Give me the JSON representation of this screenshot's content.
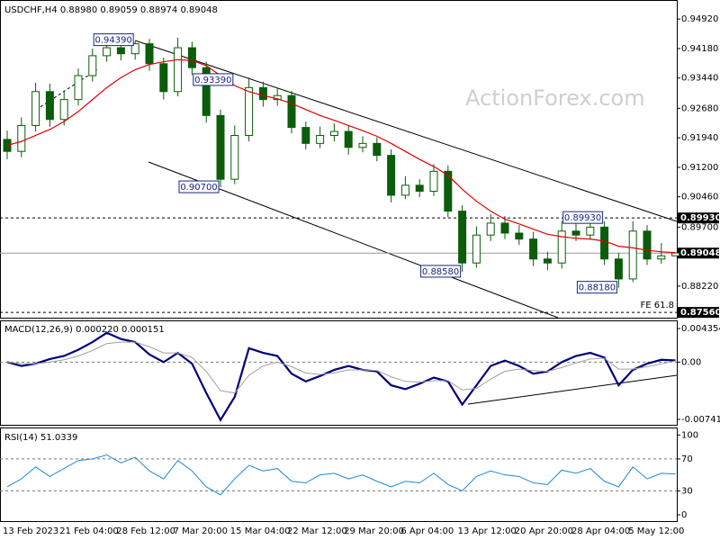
{
  "chart_data": [
    {
      "type": "candlestick",
      "title": "USDCHF,H4 0.88980 0.89059 0.88974 0.89048",
      "watermark": "ActionForex.com",
      "categories": [
        "13 Feb 2023",
        null,
        null,
        null,
        "21 Feb 04:00",
        null,
        null,
        null,
        "28 Feb 12:00",
        null,
        null,
        null,
        "7 Mar 20:00",
        null,
        null,
        null,
        "15 Mar 04:00",
        null,
        null,
        null,
        "22 Mar 12:00",
        null,
        null,
        null,
        "29 Mar 20:00",
        null,
        null,
        null,
        "6 Apr 04:00",
        null,
        null,
        null,
        "13 Apr 12:00",
        null,
        null,
        null,
        "20 Apr 20:00",
        null,
        null,
        null,
        "28 Apr 04:00",
        null,
        null,
        null,
        "5 May 12:00",
        null,
        null,
        null
      ],
      "open": [
        0.919,
        0.916,
        0.9225,
        0.931,
        0.924,
        0.929,
        0.935,
        0.94,
        0.942,
        0.9405,
        0.943,
        0.938,
        0.931,
        0.942,
        0.937,
        0.925,
        0.909,
        0.92,
        0.932,
        0.929,
        0.93,
        0.922,
        0.918,
        0.92,
        0.921,
        0.917,
        0.918,
        0.915,
        0.905,
        0.9075,
        0.906,
        0.911,
        0.901,
        0.888,
        0.895,
        0.898,
        0.8955,
        0.894,
        0.889,
        0.888,
        0.896,
        0.895,
        0.897,
        0.889,
        0.884,
        0.896,
        0.889,
        0.8898
      ],
      "high": [
        0.9212,
        0.9245,
        0.9332,
        0.933,
        0.931,
        0.9368,
        0.9418,
        0.9439,
        0.9432,
        0.9436,
        0.9442,
        0.9395,
        0.9445,
        0.9435,
        0.9385,
        0.9265,
        0.9225,
        0.9345,
        0.9335,
        0.932,
        0.9312,
        0.9235,
        0.9222,
        0.923,
        0.9225,
        0.9198,
        0.9195,
        0.9165,
        0.9098,
        0.909,
        0.9128,
        0.9125,
        0.9025,
        0.8972,
        0.9002,
        0.8998,
        0.8975,
        0.8958,
        0.8908,
        0.8985,
        0.898,
        0.8993,
        0.8985,
        0.8905,
        0.8985,
        0.8975,
        0.893,
        0.8906
      ],
      "low": [
        0.914,
        0.9145,
        0.921,
        0.9222,
        0.9225,
        0.9275,
        0.9335,
        0.9385,
        0.9388,
        0.939,
        0.9362,
        0.929,
        0.9298,
        0.9352,
        0.9232,
        0.907,
        0.9078,
        0.9185,
        0.9272,
        0.9275,
        0.9205,
        0.9165,
        0.9168,
        0.9185,
        0.9152,
        0.9158,
        0.9135,
        0.9032,
        0.904,
        0.9045,
        0.9048,
        0.8995,
        0.8858,
        0.8868,
        0.8935,
        0.894,
        0.8925,
        0.8872,
        0.8862,
        0.8866,
        0.8935,
        0.8938,
        0.8875,
        0.8818,
        0.8832,
        0.8875,
        0.8878,
        0.8897
      ],
      "close": [
        0.916,
        0.9225,
        0.931,
        0.924,
        0.929,
        0.935,
        0.94,
        0.942,
        0.9405,
        0.943,
        0.938,
        0.931,
        0.942,
        0.937,
        0.925,
        0.909,
        0.92,
        0.932,
        0.929,
        0.93,
        0.922,
        0.918,
        0.92,
        0.921,
        0.917,
        0.918,
        0.915,
        0.905,
        0.9075,
        0.906,
        0.911,
        0.901,
        0.888,
        0.895,
        0.898,
        0.8955,
        0.894,
        0.889,
        0.888,
        0.896,
        0.895,
        0.897,
        0.889,
        0.884,
        0.896,
        0.889,
        0.8898,
        0.8905
      ],
      "up_color": "#ffffff",
      "down_color": "#0b5d0b",
      "moving_average": {
        "color": "#e00000",
        "values": [
          0.9175,
          0.9185,
          0.92,
          0.9215,
          0.9235,
          0.926,
          0.929,
          0.932,
          0.9345,
          0.9365,
          0.9378,
          0.9385,
          0.939,
          0.9388,
          0.9375,
          0.935,
          0.9325,
          0.931,
          0.93,
          0.9292,
          0.928,
          0.9265,
          0.925,
          0.9238,
          0.9225,
          0.9212,
          0.9198,
          0.918,
          0.916,
          0.914,
          0.9122,
          0.91,
          0.9065,
          0.9035,
          0.901,
          0.899,
          0.8978,
          0.8965,
          0.8952,
          0.8946,
          0.8942,
          0.894,
          0.8935,
          0.8922,
          0.8918,
          0.8912,
          0.8908,
          0.8906
        ]
      },
      "ylim": [
        0.8745,
        0.9533
      ],
      "yticks": [
        {
          "value": 0.9492,
          "label": "0.94920"
        },
        {
          "value": 0.9418,
          "label": "0.94180"
        },
        {
          "value": 0.9344,
          "label": "0.93440"
        },
        {
          "value": 0.9268,
          "label": "0.92680"
        },
        {
          "value": 0.9194,
          "label": "0.91940"
        },
        {
          "value": 0.912,
          "label": "0.91200"
        },
        {
          "value": 0.9046,
          "label": "0.90460"
        },
        {
          "value": 0.897,
          "label": "0.89700"
        },
        {
          "value": 0.8822,
          "label": "0.88220"
        }
      ],
      "levels": [
        {
          "value": 0.8993,
          "label": "0.89930",
          "style": "dashed"
        },
        {
          "value": 0.89048,
          "label": "0.89048",
          "style": "solid"
        },
        {
          "value": 0.8756,
          "label": "0.87560",
          "style": "dashed",
          "note": "FE 61.8"
        }
      ],
      "annotations": [
        {
          "at": 9,
          "value": 0.9439,
          "label": "0.94390"
        },
        {
          "at": 16,
          "value": 0.9339,
          "label": "0.93390"
        },
        {
          "at": 15,
          "value": 0.907,
          "label": "0.90700"
        },
        {
          "at": 32,
          "value": 0.8858,
          "label": "0.88580"
        },
        {
          "at": 42,
          "value": 0.8993,
          "label": "0.89930"
        },
        {
          "at": 43,
          "value": 0.8818,
          "label": "0.88180"
        }
      ]
    },
    {
      "type": "line",
      "title": "MACD(12,26,9) 0.000220 0.000151",
      "series": [
        {
          "color": "#00007a",
          "values": [
            0.0,
            -0.0005,
            -0.0002,
            0.0004,
            0.0008,
            0.0016,
            0.0026,
            0.0038,
            0.003,
            0.0026,
            0.001,
            0.0,
            0.0012,
            -0.0002,
            -0.004,
            -0.0075,
            -0.0045,
            0.0018,
            0.0012,
            0.0008,
            -0.0015,
            -0.0025,
            -0.0018,
            -0.001,
            -0.0005,
            -0.001,
            -0.0012,
            -0.003,
            -0.0035,
            -0.0028,
            -0.002,
            -0.0025,
            -0.0055,
            -0.003,
            -0.0005,
            0.0002,
            -0.0005,
            -0.0015,
            -0.0012,
            0.0,
            0.0008,
            0.0012,
            0.0006,
            -0.003,
            -0.001,
            -0.0002,
            0.0003,
            0.00022
          ]
        },
        {
          "color": "#a0a0a0",
          "values": [
            0.0,
            -0.0002,
            -0.0002,
            0.0,
            0.0003,
            0.0008,
            0.0015,
            0.0024,
            0.0026,
            0.0026,
            0.002,
            0.0012,
            0.0012,
            0.0006,
            -0.0012,
            -0.0037,
            -0.004,
            -0.0017,
            -0.0005,
            0.0,
            -0.0006,
            -0.0014,
            -0.0016,
            -0.0014,
            -0.001,
            -0.001,
            -0.0011,
            -0.0019,
            -0.0025,
            -0.0026,
            -0.0024,
            -0.0024,
            -0.0036,
            -0.0034,
            -0.0022,
            -0.0012,
            -0.0009,
            -0.0011,
            -0.0012,
            -0.0007,
            -0.0001,
            0.0004,
            0.0005,
            -0.0009,
            -0.0009,
            -0.0006,
            -0.0002,
            0.000151
          ]
        }
      ],
      "ylim": [
        -0.00812,
        0.00529
      ],
      "yticks": [
        0.004354,
        {
          "value": 0,
          "label": "0.00"
        },
        -0.007417
      ],
      "zero_line": true
    },
    {
      "type": "line",
      "title": "RSI(14) 51.0339",
      "series": [
        {
          "color": "#1e88d8",
          "values": [
            35,
            45,
            60,
            48,
            58,
            68,
            70,
            75,
            65,
            72,
            55,
            45,
            68,
            55,
            35,
            25,
            45,
            62,
            55,
            58,
            42,
            40,
            50,
            52,
            45,
            50,
            42,
            35,
            42,
            40,
            52,
            38,
            30,
            48,
            55,
            50,
            48,
            40,
            38,
            56,
            52,
            58,
            42,
            35,
            60,
            45,
            52,
            51.0339
          ]
        }
      ],
      "ylim": [
        -9,
        106
      ],
      "yticks": [
        100,
        70,
        30,
        0
      ],
      "levels": [
        70,
        30
      ]
    }
  ]
}
